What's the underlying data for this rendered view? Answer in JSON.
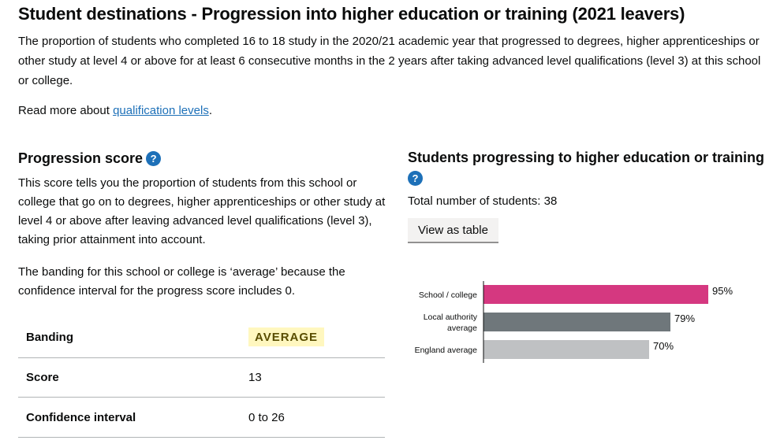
{
  "header": {
    "title": "Student destinations - Progression into higher education or training (2021 leavers)",
    "intro": "The proportion of students who completed 16 to 18 study in the 2020/21 academic year that progressed to degrees, higher apprenticeships or other study at level 4 or above for at least 6 consecutive months in the 2 years after taking advanced level qualifications (level 3) at this school or college.",
    "read_more_prefix": "Read more about ",
    "read_more_link": "qualification levels",
    "read_more_suffix": "."
  },
  "progression": {
    "heading": "Progression score",
    "help_icon": "?",
    "description": "This score tells you the proportion of students from this school or college that go on to degrees, higher apprenticeships or other study at level 4 or above after leaving advanced level qualifications (level 3), taking prior attainment into account.",
    "banding_text": "The banding for this school or college is ‘average’ because the confidence interval for the progress score includes 0.",
    "table": {
      "banding_label": "Banding",
      "banding_value": "AVERAGE",
      "score_label": "Score",
      "score_value": "13",
      "ci_label": "Confidence interval",
      "ci_value": "0 to 26"
    }
  },
  "students": {
    "heading": "Students progressing to higher education or training",
    "help_icon": "?",
    "total": "Total number of students: 38",
    "view_table_label": "View as table"
  },
  "colors": {
    "school": "#d53880",
    "local": "#6f777b",
    "england": "#bfc1c3",
    "link": "#1d70b8",
    "badge_bg": "#fff7bf",
    "badge_text": "#594d00"
  },
  "chart_data": {
    "type": "bar",
    "orientation": "horizontal",
    "categories": [
      "School / college",
      "Local authority average",
      "England average"
    ],
    "category_lines": [
      [
        "School / college"
      ],
      [
        "Local authority",
        "average"
      ],
      [
        "England average"
      ]
    ],
    "values": [
      95,
      79,
      70
    ],
    "value_labels": [
      "95%",
      "79%",
      "70%"
    ],
    "xlim": [
      0,
      100
    ]
  }
}
